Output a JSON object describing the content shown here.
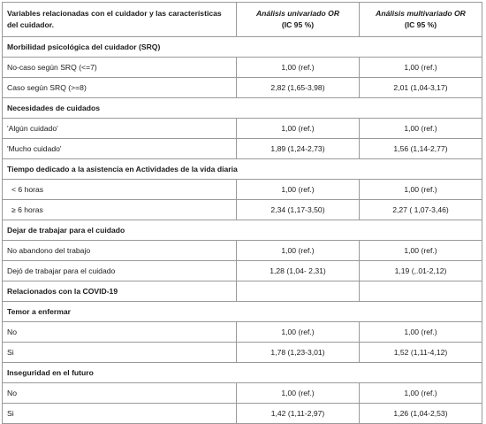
{
  "header": {
    "col1": "Variables relacionadas con el cuidador y las características del cuidador.",
    "col2_main": "Análisis univariado OR",
    "col2_sub": "(IC 95 %)",
    "col3_main": "Análisis multivariado OR",
    "col3_sub": "(IC 95 %)"
  },
  "groups": [
    {
      "title": "Morbilidad psicológica del cuidador (SRQ)",
      "rows": [
        {
          "label": "No-caso según SRQ (<=7)",
          "uni": "1,00 (ref.)",
          "multi": "1,00 (ref.)"
        },
        {
          "label": "Caso según  SRQ (>=8)",
          "uni": "2,82 (1,65-3,98)",
          "multi": "2,01 (1,04-3,17)"
        }
      ]
    },
    {
      "title": "Necesidades de cuidados",
      "rows": [
        {
          "label": "'Algún cuidado'",
          "uni": "1,00 (ref.)",
          "multi": "1,00 (ref.)"
        },
        {
          "label": "'Mucho cuidado'",
          "uni": "1,89 (1,24-2,73)",
          "multi": "1,56 (1,14-2,77)"
        }
      ]
    },
    {
      "title": "Tiempo dedicado a la asistencia en Actividades de la vida diaria",
      "rows": [
        {
          "label": "<  6 horas",
          "uni": "1,00 (ref.)",
          "multi": "1,00 (ref.)"
        },
        {
          "label": "≥  6 horas",
          "uni": "2,34 (1,17-3,50)",
          "multi": "2,27 ( 1,07-3,46)"
        }
      ]
    },
    {
      "title": "Dejar de trabajar para el cuidado",
      "rows": [
        {
          "label": "No abandono del trabajo",
          "uni": "1,00 (ref.)",
          "multi": "1,00 (ref.)"
        },
        {
          "label": "Dejó de trabajar para el cuidado",
          "uni": "1,28 (1,04- 2,31)",
          "multi": "1,19 (,.01-2,12)"
        }
      ]
    },
    {
      "title": "Relacionados con la COVID-19",
      "split": true,
      "rows": []
    },
    {
      "title": "Temor a enfermar",
      "rows": [
        {
          "label": "No",
          "uni": "1,00 (ref.)",
          "multi": "1,00 (ref.)"
        },
        {
          "label": "Si",
          "uni": "1,78 (1,23-3,01)",
          "multi": "1,52 (1,11-4,12)"
        }
      ]
    },
    {
      "title": "Inseguridad en el futuro",
      "rows": [
        {
          "label": "No",
          "uni": "1,00 (ref.)",
          "multi": "1,00 (ref.)"
        },
        {
          "label": "Si",
          "uni": "1,42 (1,11-2,97)",
          "multi": "1,26 (1,04-2,53)"
        }
      ]
    }
  ]
}
